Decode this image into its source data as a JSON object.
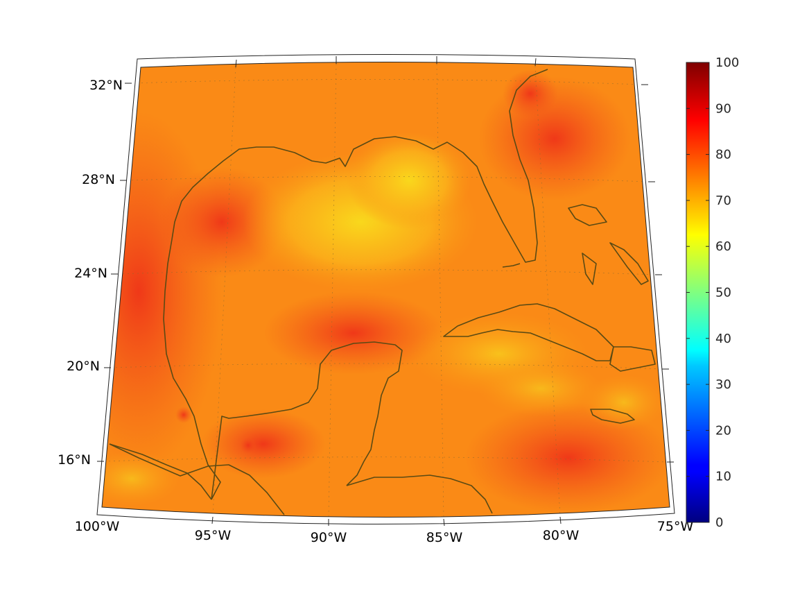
{
  "map": {
    "projection": "lambert-conformal",
    "lon_range": [
      -100,
      -75
    ],
    "lat_range": [
      14,
      33
    ],
    "lat_labels": [
      "32°N",
      "28°N",
      "24°N",
      "20°N",
      "16°N"
    ],
    "lon_labels": [
      "100°W",
      "95°W",
      "90°W",
      "85°W",
      "80°W",
      "75°W"
    ],
    "coastline_color": "#5a4a14",
    "field_colors": {
      "low": "#f7d21a",
      "mid": "#ff8a12",
      "high": "#f2401a"
    }
  },
  "colorbar": {
    "colormap": "jet",
    "range": [
      0,
      100
    ],
    "ticks": [
      "100",
      "90",
      "80",
      "70",
      "60",
      "50",
      "40",
      "30",
      "20",
      "10",
      "0"
    ]
  }
}
